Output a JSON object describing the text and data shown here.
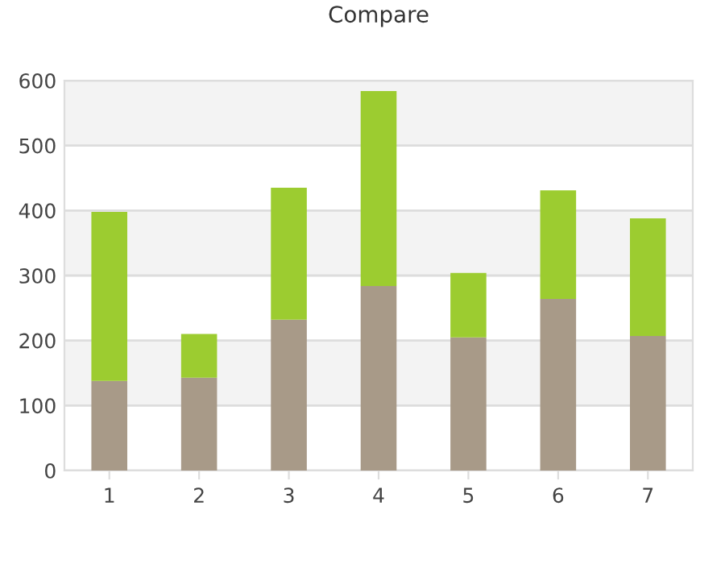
{
  "chart_data": {
    "type": "bar",
    "title": "Compare",
    "stacked": true,
    "categories": [
      "1",
      "2",
      "3",
      "4",
      "5",
      "6",
      "7"
    ],
    "series": [
      {
        "color": "#a89a88",
        "values": [
          138,
          143,
          232,
          284,
          205,
          264,
          207
        ]
      },
      {
        "color": "#9ccc30",
        "values": [
          260,
          67,
          203,
          300,
          99,
          167,
          181
        ]
      }
    ],
    "ylim": [
      0,
      600
    ],
    "yticks": [
      0,
      100,
      200,
      300,
      400,
      500,
      600
    ],
    "grid": "y",
    "bands": [
      {
        "axis": "y",
        "from": 100,
        "to": 200,
        "color": "#f3f3f3"
      },
      {
        "axis": "y",
        "from": 300,
        "to": 400,
        "color": "#f3f3f3"
      },
      {
        "axis": "y",
        "from": 500,
        "to": 600,
        "color": "#f3f3f3"
      }
    ]
  }
}
